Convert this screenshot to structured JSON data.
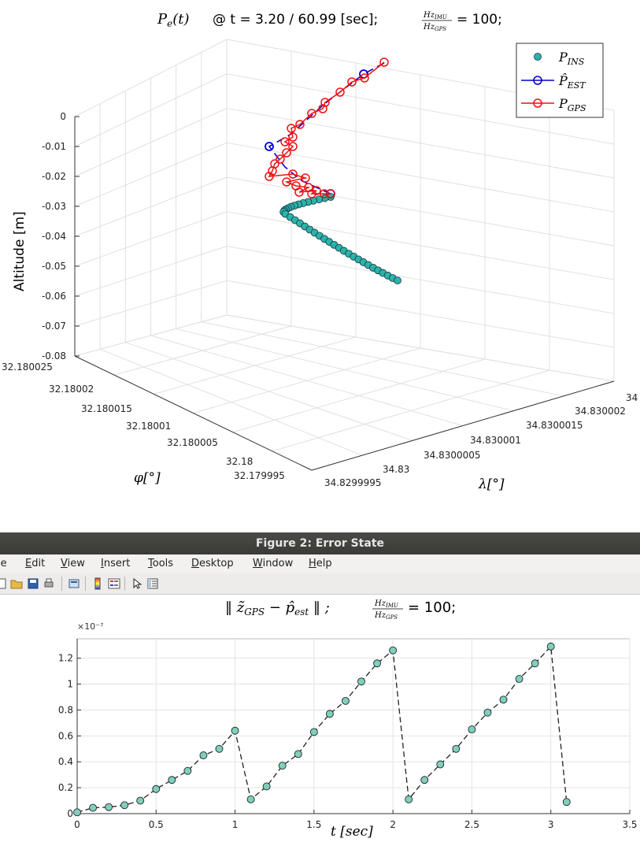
{
  "figure1": {
    "title": {
      "lhs": "P",
      "lhs_sub": "e",
      "lhs_arg": "(t)",
      "time_text": "@ t = 3.20 / 60.99 [sec];",
      "frac_num": "Hz",
      "frac_num_sub": "IMU",
      "frac_den": "Hz",
      "frac_den_sub": "GPS",
      "rhs": "= 100;"
    },
    "legend": [
      {
        "label": "P",
        "sub": "INS",
        "color": "#2bb3a8",
        "style": "marker"
      },
      {
        "label": "P̂",
        "sub": "EST",
        "color": "#0000cc",
        "style": "line-circle"
      },
      {
        "label": "P",
        "sub": "GPS",
        "color": "#ee1111",
        "style": "line-circle"
      }
    ],
    "chart_data": {
      "type": "scatter",
      "zlabel": "Altitude [m]",
      "ylabel_phi": "φ[°]",
      "xlabel_lambda": "λ[°]",
      "zticks": [
        "0",
        "-0.01",
        "-0.02",
        "-0.03",
        "-0.04",
        "-0.05",
        "-0.06",
        "-0.07",
        "-0.08"
      ],
      "phi_ticks": [
        "32.180025",
        "32.18002",
        "32.180015",
        "32.18001",
        "32.180005",
        "32.18",
        "32.179995"
      ],
      "lambda_ticks": [
        "34.8299995",
        "34.83",
        "34.8300005",
        "34.830001",
        "34.8300015",
        "34.830002",
        "34"
      ],
      "zlim": [
        -0.08,
        0
      ],
      "grid": true,
      "legend_position": "top-right"
    }
  },
  "window2": {
    "title": "Figure 2: Error State",
    "menu": [
      "le",
      "Edit",
      "View",
      "Insert",
      "Tools",
      "Desktop",
      "Window",
      "Help"
    ],
    "menu_underline": [
      "",
      "E",
      "V",
      "I",
      "T",
      "D",
      "W",
      "H"
    ],
    "toolbar_icons": [
      "open-icon",
      "folder-icon",
      "save-icon",
      "print-icon",
      "link-icon",
      "colorbar-icon",
      "legend-icon",
      "pointer-icon",
      "property-editor-icon"
    ]
  },
  "figure2": {
    "title_main": "‖ z̃",
    "title_sub1": "GPS",
    "title_mid": " − p̂",
    "title_sub2": "est",
    "title_tail": " ‖ ;",
    "frac_num": "Hz",
    "frac_num_sub": "IMU",
    "frac_den": "Hz",
    "frac_den_sub": "GPS",
    "rhs": "= 100;",
    "exponent": "×10⁻⁷",
    "chart_data": {
      "type": "line",
      "xlabel": "t [sec]",
      "xlim": [
        0,
        3.5
      ],
      "ylim": [
        0,
        1.35
      ],
      "xticks": [
        "0",
        "0.5",
        "1",
        "1.5",
        "2",
        "2.5",
        "3",
        "3.5"
      ],
      "yticks": [
        "0",
        "0.2",
        "0.4",
        "0.6",
        "0.8",
        "1",
        "1.2"
      ],
      "series": [
        {
          "x": [
            0,
            0.1,
            0.2,
            0.3,
            0.4,
            0.5,
            0.6,
            0.7,
            0.8,
            0.9,
            1.0,
            1.1,
            1.2,
            1.3,
            1.4,
            1.5,
            1.6,
            1.7,
            1.8,
            1.9,
            2.0,
            2.1,
            2.2,
            2.3,
            2.4,
            2.5,
            2.6,
            2.7,
            2.8,
            2.9,
            3.0,
            3.1
          ],
          "values": [
            0.01,
            0.045,
            0.05,
            0.065,
            0.1,
            0.19,
            0.26,
            0.33,
            0.45,
            0.5,
            0.64,
            0.11,
            0.21,
            0.37,
            0.46,
            0.63,
            0.77,
            0.87,
            1.02,
            1.16,
            1.26,
            0.11,
            0.26,
            0.38,
            0.5,
            0.65,
            0.78,
            0.88,
            1.04,
            1.16,
            1.29,
            0.09
          ],
          "color": "#2bb3a8"
        }
      ],
      "grid": true
    }
  }
}
